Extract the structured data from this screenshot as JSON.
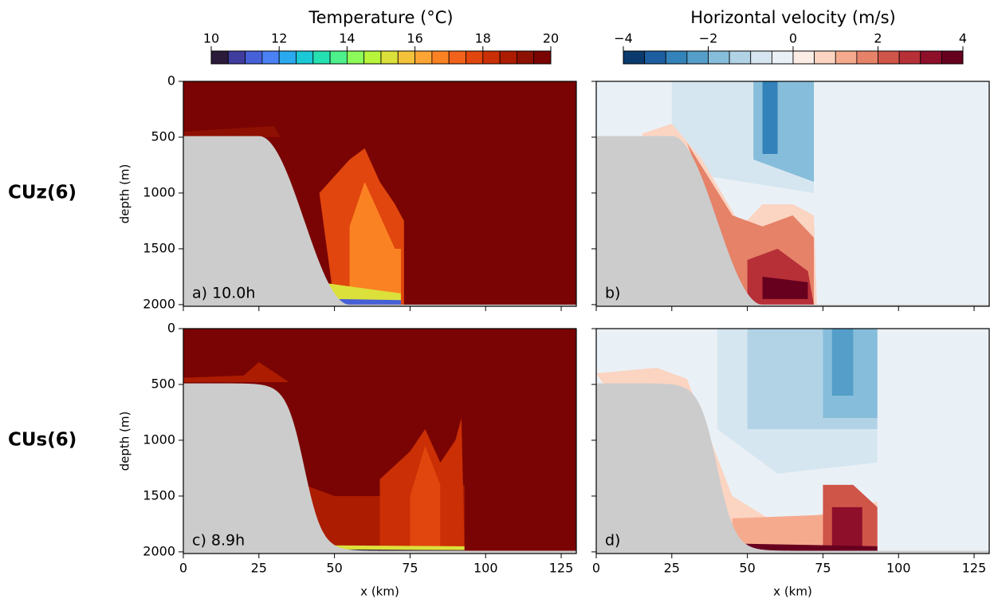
{
  "rows": [
    {
      "label": "CUz(6)"
    },
    {
      "label": "CUs(6)"
    }
  ],
  "colorbars": [
    {
      "title": "Temperature (°C)",
      "lim": [
        10,
        20
      ],
      "ticks": [
        10,
        12,
        14,
        16,
        18,
        20
      ],
      "colors": [
        "#2b1a3a",
        "#3f3d9e",
        "#4660d8",
        "#4a82f5",
        "#2aa9ef",
        "#1bc8d6",
        "#25e0b0",
        "#4df08a",
        "#8cfb5a",
        "#b7f43a",
        "#dce03a",
        "#f4c23a",
        "#fda534",
        "#fb8223",
        "#f1621a",
        "#e0460d",
        "#ca2f05",
        "#ac1c01",
        "#8e1002",
        "#7a0403"
      ]
    },
    {
      "title": "Horizontal velocity (m/s)",
      "lim": [
        -4,
        4
      ],
      "ticks": [
        {
          "value": -4,
          "label": "−4"
        },
        {
          "value": -2,
          "label": "−2"
        },
        0,
        2,
        4
      ],
      "colors": [
        "#0b3a6e",
        "#1c5ea0",
        "#3382ba",
        "#549ec9",
        "#86bdda",
        "#b2d3e6",
        "#d6e6f0",
        "#eaf1f6",
        "#fbece6",
        "#fbd4c2",
        "#f6aa8d",
        "#e58268",
        "#d05549",
        "#b72f37",
        "#8e0f2a",
        "#67001f"
      ]
    }
  ],
  "panels": [
    {
      "label": "a) 10.0h"
    },
    {
      "label": "b)"
    },
    {
      "label": "c) 8.9h"
    },
    {
      "label": "d)"
    }
  ],
  "axes": {
    "xlabel": "x (km)",
    "ylabel": "depth (m)",
    "xlim": [
      0,
      130
    ],
    "xticks": [
      0,
      25,
      50,
      75,
      100,
      125
    ],
    "ylim": [
      2015,
      0
    ],
    "yticks": [
      0,
      500,
      1000,
      1500,
      2000
    ]
  }
}
